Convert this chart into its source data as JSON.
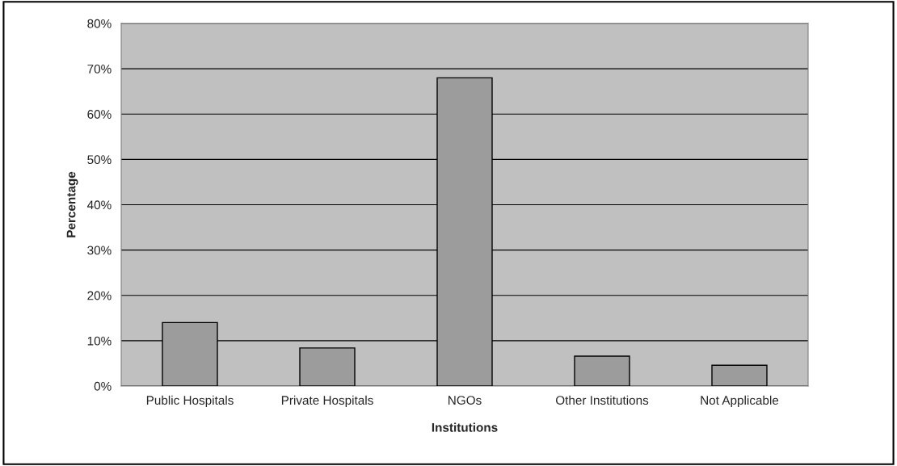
{
  "chart_data": {
    "type": "bar",
    "xlabel": "Institutions",
    "ylabel": "Percentage",
    "categories": [
      "Public Hospitals",
      "Private Hospitals",
      "NGOs",
      "Other Institutions",
      "Not Applicable"
    ],
    "values": [
      14,
      8.4,
      68,
      6.6,
      4.6
    ],
    "color": "#9c9c9c",
    "ylim": [
      0,
      80
    ],
    "yticks": [
      {
        "value": 0,
        "label": "0%"
      },
      {
        "value": 10,
        "label": "10%"
      },
      {
        "value": 20,
        "label": "20%"
      },
      {
        "value": 30,
        "label": "30%"
      },
      {
        "value": 40,
        "label": "40%"
      },
      {
        "value": 50,
        "label": "50%"
      },
      {
        "value": 60,
        "label": "60%"
      },
      {
        "value": 70,
        "label": "70%"
      },
      {
        "value": 80,
        "label": "80%"
      }
    ],
    "grid": "y",
    "legend": false
  }
}
